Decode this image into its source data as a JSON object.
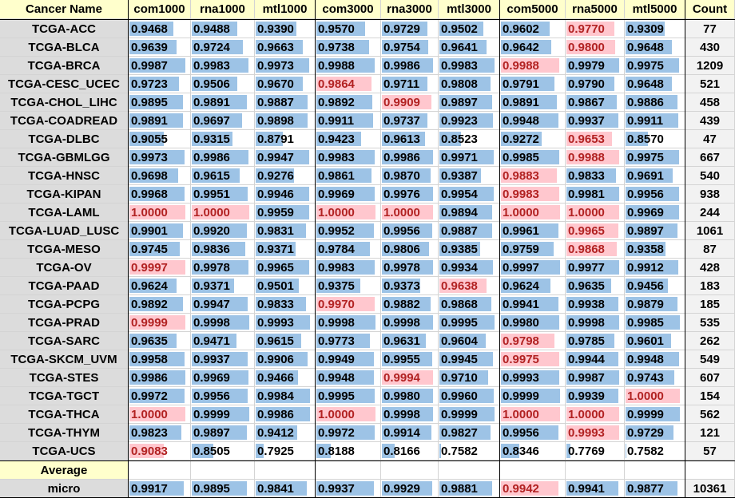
{
  "colors": {
    "bar_blue": "#9dc3e6",
    "bar_pink": "#ffc7ce",
    "highlight_text": "#b22222",
    "header_fill": "#ffffcc",
    "name_fill": "#dcdcdc",
    "count_fill": "#f2f2f2"
  },
  "table": {
    "corner": "Cancer Name",
    "columns": [
      "com1000",
      "rna1000",
      "mtl1000",
      "com3000",
      "rna3000",
      "mtl3000",
      "com5000",
      "rna5000",
      "mtl5000"
    ],
    "count_header": "Count",
    "rows": [
      {
        "name": "TCGA-ACC",
        "values": [
          "0.9468",
          "0.9488",
          "0.9390",
          "0.9570",
          "0.9729",
          "0.9502",
          "0.9602",
          "0.9770",
          "0.9309"
        ],
        "max_index": 7,
        "count": "77"
      },
      {
        "name": "TCGA-BLCA",
        "values": [
          "0.9639",
          "0.9724",
          "0.9663",
          "0.9738",
          "0.9754",
          "0.9641",
          "0.9642",
          "0.9800",
          "0.9648"
        ],
        "max_index": 7,
        "count": "430"
      },
      {
        "name": "TCGA-BRCA",
        "values": [
          "0.9987",
          "0.9983",
          "0.9973",
          "0.9988",
          "0.9986",
          "0.9983",
          "0.9988",
          "0.9979",
          "0.9975"
        ],
        "max_index": 6,
        "count": "1209"
      },
      {
        "name": "TCGA-CESC_UCEC",
        "values": [
          "0.9723",
          "0.9506",
          "0.9670",
          "0.9864",
          "0.9711",
          "0.9808",
          "0.9791",
          "0.9790",
          "0.9648"
        ],
        "max_index": 3,
        "count": "521"
      },
      {
        "name": "TCGA-CHOL_LIHC",
        "values": [
          "0.9895",
          "0.9891",
          "0.9887",
          "0.9892",
          "0.9909",
          "0.9897",
          "0.9891",
          "0.9867",
          "0.9886"
        ],
        "max_index": 4,
        "count": "458"
      },
      {
        "name": "TCGA-COADREAD",
        "values": [
          "0.9891",
          "0.9697",
          "0.9898",
          "0.9911",
          "0.9737",
          "0.9923",
          "0.9948",
          "0.9937",
          "0.9911"
        ],
        "max_index": -1,
        "count": "439"
      },
      {
        "name": "TCGA-DLBC",
        "values": [
          "0.9055",
          "0.9315",
          "0.8791",
          "0.9423",
          "0.9613",
          "0.8523",
          "0.9272",
          "0.9653",
          "0.8570"
        ],
        "max_index": 7,
        "count": "47"
      },
      {
        "name": "TCGA-GBMLGG",
        "values": [
          "0.9973",
          "0.9986",
          "0.9947",
          "0.9983",
          "0.9986",
          "0.9971",
          "0.9985",
          "0.9988",
          "0.9975"
        ],
        "max_index": 7,
        "count": "667"
      },
      {
        "name": "TCGA-HNSC",
        "values": [
          "0.9698",
          "0.9615",
          "0.9276",
          "0.9861",
          "0.9870",
          "0.9387",
          "0.9883",
          "0.9833",
          "0.9691"
        ],
        "max_index": 6,
        "count": "540"
      },
      {
        "name": "TCGA-KIPAN",
        "values": [
          "0.9968",
          "0.9951",
          "0.9946",
          "0.9969",
          "0.9976",
          "0.9954",
          "0.9983",
          "0.9981",
          "0.9956"
        ],
        "max_index": 6,
        "count": "938"
      },
      {
        "name": "TCGA-LAML",
        "values": [
          "1.0000",
          "1.0000",
          "0.9959",
          "1.0000",
          "1.0000",
          "0.9894",
          "1.0000",
          "1.0000",
          "0.9969"
        ],
        "max_index": [
          0,
          1,
          3,
          4,
          6,
          7
        ],
        "count": "244"
      },
      {
        "name": "TCGA-LUAD_LUSC",
        "values": [
          "0.9901",
          "0.9920",
          "0.9831",
          "0.9952",
          "0.9956",
          "0.9887",
          "0.9961",
          "0.9965",
          "0.9897"
        ],
        "max_index": 7,
        "count": "1061"
      },
      {
        "name": "TCGA-MESO",
        "values": [
          "0.9745",
          "0.9836",
          "0.9371",
          "0.9784",
          "0.9806",
          "0.9385",
          "0.9759",
          "0.9868",
          "0.9358"
        ],
        "max_index": 7,
        "count": "87"
      },
      {
        "name": "TCGA-OV",
        "values": [
          "0.9997",
          "0.9978",
          "0.9965",
          "0.9983",
          "0.9978",
          "0.9934",
          "0.9997",
          "0.9977",
          "0.9912"
        ],
        "max_index": 0,
        "count": "428"
      },
      {
        "name": "TCGA-PAAD",
        "values": [
          "0.9624",
          "0.9371",
          "0.9501",
          "0.9375",
          "0.9373",
          "0.9638",
          "0.9624",
          "0.9635",
          "0.9456"
        ],
        "max_index": 5,
        "count": "183"
      },
      {
        "name": "TCGA-PCPG",
        "values": [
          "0.9892",
          "0.9947",
          "0.9833",
          "0.9970",
          "0.9882",
          "0.9868",
          "0.9941",
          "0.9938",
          "0.9879"
        ],
        "max_index": 3,
        "count": "185"
      },
      {
        "name": "TCGA-PRAD",
        "values": [
          "0.9999",
          "0.9998",
          "0.9993",
          "0.9998",
          "0.9998",
          "0.9995",
          "0.9980",
          "0.9998",
          "0.9985"
        ],
        "max_index": 0,
        "count": "535"
      },
      {
        "name": "TCGA-SARC",
        "values": [
          "0.9635",
          "0.9471",
          "0.9615",
          "0.9773",
          "0.9631",
          "0.9604",
          "0.9798",
          "0.9785",
          "0.9601"
        ],
        "max_index": 6,
        "count": "262"
      },
      {
        "name": "TCGA-SKCM_UVM",
        "values": [
          "0.9958",
          "0.9937",
          "0.9906",
          "0.9949",
          "0.9955",
          "0.9945",
          "0.9975",
          "0.9944",
          "0.9948"
        ],
        "max_index": 6,
        "count": "549"
      },
      {
        "name": "TCGA-STES",
        "values": [
          "0.9986",
          "0.9969",
          "0.9466",
          "0.9948",
          "0.9994",
          "0.9710",
          "0.9993",
          "0.9987",
          "0.9743"
        ],
        "max_index": 4,
        "count": "607"
      },
      {
        "name": "TCGA-TGCT",
        "values": [
          "0.9972",
          "0.9956",
          "0.9984",
          "0.9995",
          "0.9980",
          "0.9960",
          "0.9999",
          "0.9939",
          "1.0000"
        ],
        "max_index": 8,
        "count": "154"
      },
      {
        "name": "TCGA-THCA",
        "values": [
          "1.0000",
          "0.9999",
          "0.9986",
          "1.0000",
          "0.9998",
          "0.9999",
          "1.0000",
          "1.0000",
          "0.9999"
        ],
        "max_index": [
          0,
          3,
          6,
          7
        ],
        "count": "562"
      },
      {
        "name": "TCGA-THYM",
        "values": [
          "0.9823",
          "0.9897",
          "0.9412",
          "0.9972",
          "0.9914",
          "0.9827",
          "0.9956",
          "0.9993",
          "0.9729"
        ],
        "max_index": 7,
        "count": "121"
      },
      {
        "name": "TCGA-UCS",
        "values": [
          "0.9083",
          "0.8505",
          "0.7925",
          "0.8188",
          "0.8166",
          "0.7582",
          "0.8346",
          "0.7769",
          "0.7582"
        ],
        "max_index": 0,
        "count": "57"
      }
    ],
    "average_label": "Average",
    "summary": {
      "name": "micro",
      "values": [
        "0.9917",
        "0.9895",
        "0.9841",
        "0.9937",
        "0.9929",
        "0.9881",
        "0.9942",
        "0.9941",
        "0.9877"
      ],
      "max_index": 6,
      "count": "10361"
    }
  }
}
